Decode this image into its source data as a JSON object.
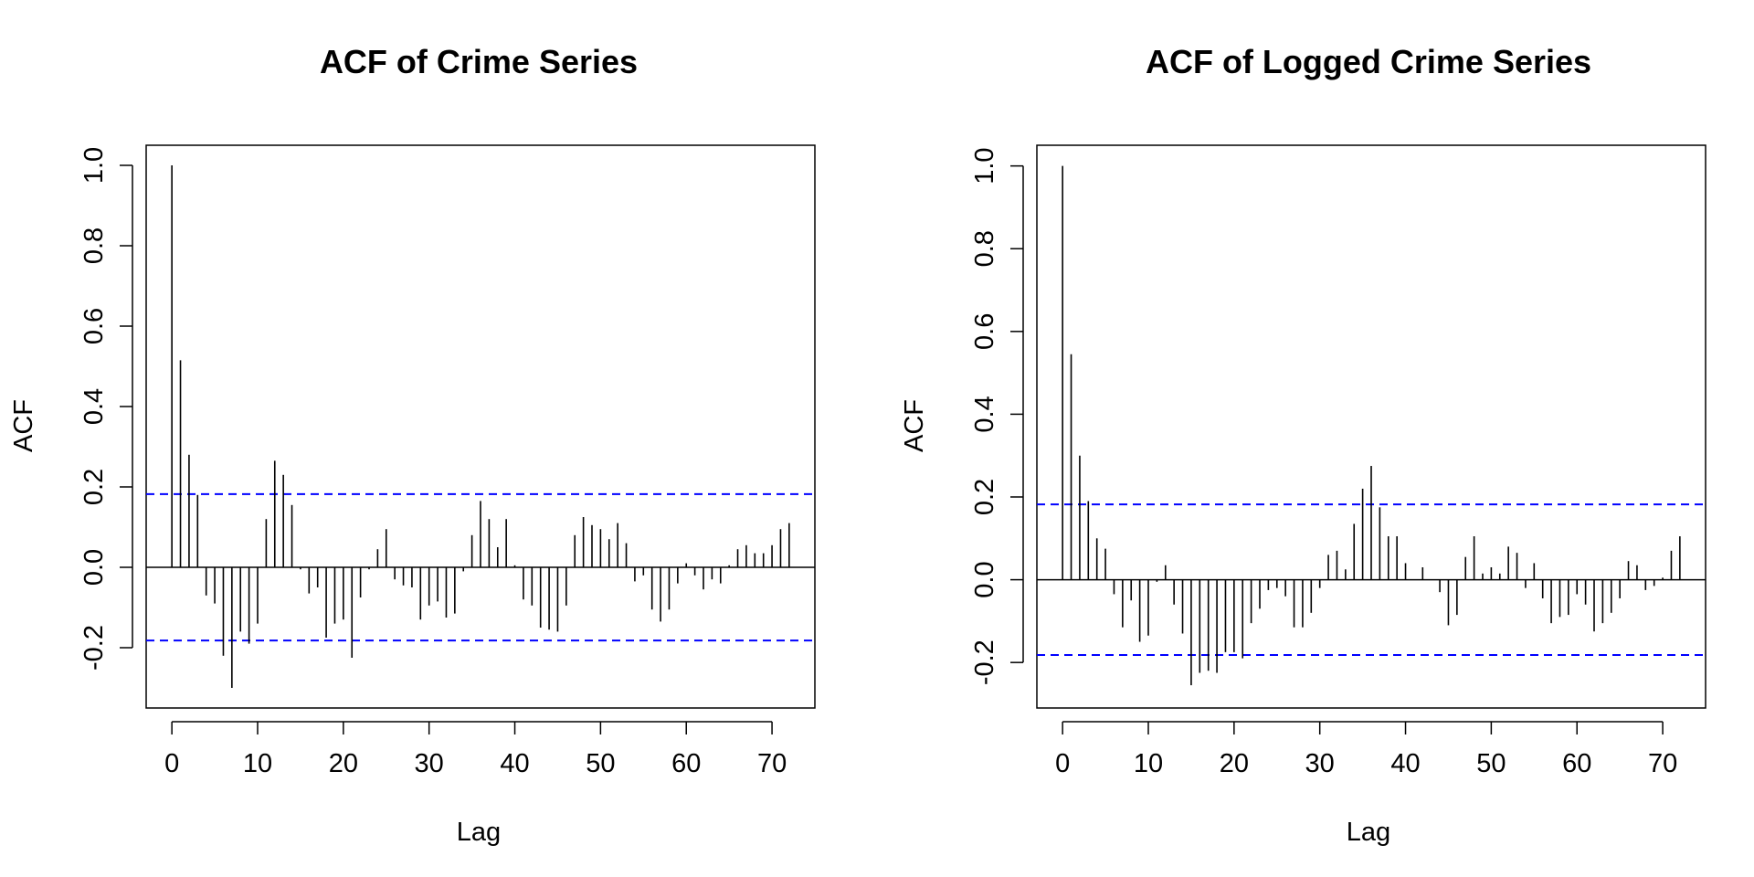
{
  "chart_data": [
    {
      "type": "bar",
      "title": "ACF of Crime Series",
      "xlabel": "Lag",
      "ylabel": "ACF",
      "xlim": [
        -3,
        75
      ],
      "ylim": [
        -0.35,
        1.05
      ],
      "xticks": [
        "0",
        "10",
        "20",
        "30",
        "40",
        "50",
        "60",
        "70"
      ],
      "yticks": [
        "-0.2",
        "0.0",
        "0.2",
        "0.4",
        "0.6",
        "0.8",
        "1.0"
      ],
      "confidence_bounds": [
        0.182,
        -0.182
      ],
      "confidence_line_color": "#0000ff",
      "lags": [
        0,
        1,
        2,
        3,
        4,
        5,
        6,
        7,
        8,
        9,
        10,
        11,
        12,
        13,
        14,
        15,
        16,
        17,
        18,
        19,
        20,
        21,
        22,
        23,
        24,
        25,
        26,
        27,
        28,
        29,
        30,
        31,
        32,
        33,
        34,
        35,
        36,
        37,
        38,
        39,
        40,
        41,
        42,
        43,
        44,
        45,
        46,
        47,
        48,
        49,
        50,
        51,
        52,
        53,
        54,
        55,
        56,
        57,
        58,
        59,
        60,
        61,
        62,
        63,
        64,
        65,
        66,
        67,
        68,
        69,
        70,
        71,
        72
      ],
      "values": [
        1.0,
        0.515,
        0.28,
        0.18,
        -0.07,
        -0.09,
        -0.22,
        -0.3,
        -0.16,
        -0.19,
        -0.14,
        0.12,
        0.265,
        0.23,
        0.155,
        -0.005,
        -0.065,
        -0.05,
        -0.175,
        -0.14,
        -0.13,
        -0.225,
        -0.075,
        -0.005,
        0.045,
        0.095,
        -0.03,
        -0.045,
        -0.05,
        -0.13,
        -0.095,
        -0.085,
        -0.125,
        -0.115,
        -0.01,
        0.08,
        0.165,
        0.12,
        0.05,
        0.12,
        0.005,
        -0.08,
        -0.095,
        -0.15,
        -0.155,
        -0.16,
        -0.095,
        0.08,
        0.125,
        0.105,
        0.095,
        0.07,
        0.11,
        0.06,
        -0.035,
        -0.02,
        -0.105,
        -0.135,
        -0.105,
        -0.04,
        0.01,
        -0.02,
        -0.055,
        -0.03,
        -0.04,
        0.005,
        0.045,
        0.055,
        0.035,
        0.035,
        0.055,
        0.095,
        0.11
      ]
    },
    {
      "type": "bar",
      "title": "ACF of Logged Crime Series",
      "xlabel": "Lag",
      "ylabel": "ACF",
      "xlim": [
        -3,
        75
      ],
      "ylim": [
        -0.31,
        1.05
      ],
      "xticks": [
        "0",
        "10",
        "20",
        "30",
        "40",
        "50",
        "60",
        "70"
      ],
      "yticks": [
        "-0.2",
        "0.0",
        "0.2",
        "0.4",
        "0.6",
        "0.8",
        "1.0"
      ],
      "confidence_bounds": [
        0.182,
        -0.182
      ],
      "confidence_line_color": "#0000ff",
      "lags": [
        0,
        1,
        2,
        3,
        4,
        5,
        6,
        7,
        8,
        9,
        10,
        11,
        12,
        13,
        14,
        15,
        16,
        17,
        18,
        19,
        20,
        21,
        22,
        23,
        24,
        25,
        26,
        27,
        28,
        29,
        30,
        31,
        32,
        33,
        34,
        35,
        36,
        37,
        38,
        39,
        40,
        41,
        42,
        43,
        44,
        45,
        46,
        47,
        48,
        49,
        50,
        51,
        52,
        53,
        54,
        55,
        56,
        57,
        58,
        59,
        60,
        61,
        62,
        63,
        64,
        65,
        66,
        67,
        68,
        69,
        70,
        71,
        72
      ],
      "values": [
        1.0,
        0.545,
        0.3,
        0.19,
        0.1,
        0.075,
        -0.035,
        -0.115,
        -0.05,
        -0.15,
        -0.135,
        -0.005,
        0.035,
        -0.06,
        -0.13,
        -0.255,
        -0.225,
        -0.22,
        -0.225,
        -0.175,
        -0.175,
        -0.19,
        -0.105,
        -0.07,
        -0.025,
        -0.02,
        -0.04,
        -0.115,
        -0.115,
        -0.08,
        -0.02,
        0.06,
        0.07,
        0.025,
        0.135,
        0.22,
        0.275,
        0.175,
        0.105,
        0.105,
        0.04,
        0.0,
        0.03,
        0.0,
        -0.03,
        -0.11,
        -0.085,
        0.055,
        0.105,
        0.015,
        0.03,
        0.015,
        0.08,
        0.065,
        -0.02,
        0.04,
        -0.045,
        -0.105,
        -0.09,
        -0.085,
        -0.035,
        -0.06,
        -0.125,
        -0.105,
        -0.08,
        -0.045,
        0.045,
        0.035,
        -0.025,
        -0.015,
        0.005,
        0.07,
        0.105
      ]
    }
  ]
}
